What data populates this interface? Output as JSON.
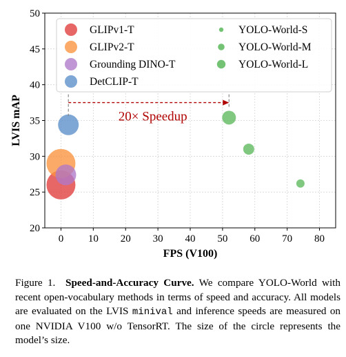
{
  "chart_data": {
    "type": "scatter",
    "xlabel": "FPS (V100)",
    "ylabel": "LVIS mAP",
    "xlim": [
      -5,
      85
    ],
    "ylim": [
      20,
      50
    ],
    "xticks": [
      0,
      10,
      20,
      30,
      40,
      50,
      60,
      70,
      80
    ],
    "yticks": [
      20,
      25,
      30,
      35,
      40,
      45,
      50
    ],
    "grid": true,
    "legend_position": "top",
    "series": [
      {
        "name": "GLIPv1-T",
        "color": "#e03b3b",
        "points": [
          {
            "x": 0,
            "y": 26.0,
            "size": 21
          }
        ]
      },
      {
        "name": "GLIPv2-T",
        "color": "#fb923c",
        "points": [
          {
            "x": 0,
            "y": 29.0,
            "size": 21
          }
        ]
      },
      {
        "name": "Grounding DINO-T",
        "color": "#b079c8",
        "points": [
          {
            "x": 1.5,
            "y": 27.4,
            "size": 15
          }
        ]
      },
      {
        "name": "DetCLIP-T",
        "color": "#5b8ec9",
        "points": [
          {
            "x": 2.3,
            "y": 34.4,
            "size": 15
          }
        ]
      },
      {
        "name": "YOLO-World-S",
        "color": "#5cb85c",
        "points": [
          {
            "x": 74.1,
            "y": 26.2,
            "size": 6
          }
        ]
      },
      {
        "name": "YOLO-World-M",
        "color": "#5cb85c",
        "points": [
          {
            "x": 58.1,
            "y": 31.0,
            "size": 8
          }
        ]
      },
      {
        "name": "YOLO-World-L",
        "color": "#5cb85c",
        "points": [
          {
            "x": 52.0,
            "y": 35.4,
            "size": 10
          }
        ]
      }
    ],
    "annotation": {
      "text": "20× Speedup",
      "x_from": 2.3,
      "x_to": 52.0,
      "y": 37.5,
      "color": "#b00000"
    }
  },
  "caption": {
    "figure_label": "Figure 1.",
    "title": "Speed-and-Accuracy Curve.",
    "text_part1": "We compare YOLO-World with recent open-vocabulary methods in terms of speed and accuracy. All models are evaluated on the LVIS",
    "code": "minival",
    "text_part2": "and inference speeds are measured on one NVIDIA V100 w/o TensorRT. The size of the circle represents the model’s size."
  }
}
